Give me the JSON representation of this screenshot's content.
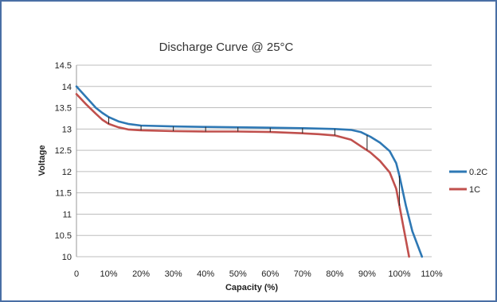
{
  "chart_data": {
    "type": "line",
    "title": "Discharge Curve @ 25°C",
    "xlabel": "Capacity (%)",
    "ylabel": "Voltage",
    "xlim": [
      0,
      110
    ],
    "ylim": [
      10,
      14.5
    ],
    "x_ticks": [
      "0",
      "10%",
      "20%",
      "30%",
      "40%",
      "50%",
      "60%",
      "70%",
      "80%",
      "90%",
      "100%",
      "110%"
    ],
    "y_ticks": [
      "10",
      "10.5",
      "11",
      "11.5",
      "12",
      "12.5",
      "13",
      "13.5",
      "14",
      "14.5"
    ],
    "grid": "horizontal",
    "legend_position": "right",
    "series": [
      {
        "name": "0.2C",
        "color": "#2e78b4",
        "points": [
          [
            0,
            14.0
          ],
          [
            3,
            13.75
          ],
          [
            6,
            13.5
          ],
          [
            8,
            13.38
          ],
          [
            10,
            13.28
          ],
          [
            13,
            13.18
          ],
          [
            16,
            13.12
          ],
          [
            20,
            13.08
          ],
          [
            30,
            13.06
          ],
          [
            40,
            13.05
          ],
          [
            50,
            13.04
          ],
          [
            60,
            13.03
          ],
          [
            70,
            13.02
          ],
          [
            80,
            13.0
          ],
          [
            85,
            12.98
          ],
          [
            88,
            12.93
          ],
          [
            91,
            12.82
          ],
          [
            94,
            12.68
          ],
          [
            97,
            12.48
          ],
          [
            99,
            12.2
          ],
          [
            100,
            11.9
          ],
          [
            102,
            11.2
          ],
          [
            104,
            10.6
          ],
          [
            107,
            10.0
          ]
        ]
      },
      {
        "name": "1C",
        "color": "#c0504d",
        "points": [
          [
            0,
            13.82
          ],
          [
            3,
            13.58
          ],
          [
            6,
            13.36
          ],
          [
            8,
            13.22
          ],
          [
            10,
            13.12
          ],
          [
            13,
            13.04
          ],
          [
            16,
            12.99
          ],
          [
            20,
            12.97
          ],
          [
            30,
            12.95
          ],
          [
            40,
            12.94
          ],
          [
            50,
            12.94
          ],
          [
            60,
            12.93
          ],
          [
            70,
            12.9
          ],
          [
            75,
            12.88
          ],
          [
            80,
            12.85
          ],
          [
            85,
            12.75
          ],
          [
            88,
            12.6
          ],
          [
            91,
            12.45
          ],
          [
            94,
            12.25
          ],
          [
            97,
            11.98
          ],
          [
            99,
            11.6
          ],
          [
            100,
            11.2
          ],
          [
            101,
            10.8
          ],
          [
            103,
            10.0
          ]
        ]
      }
    ]
  }
}
